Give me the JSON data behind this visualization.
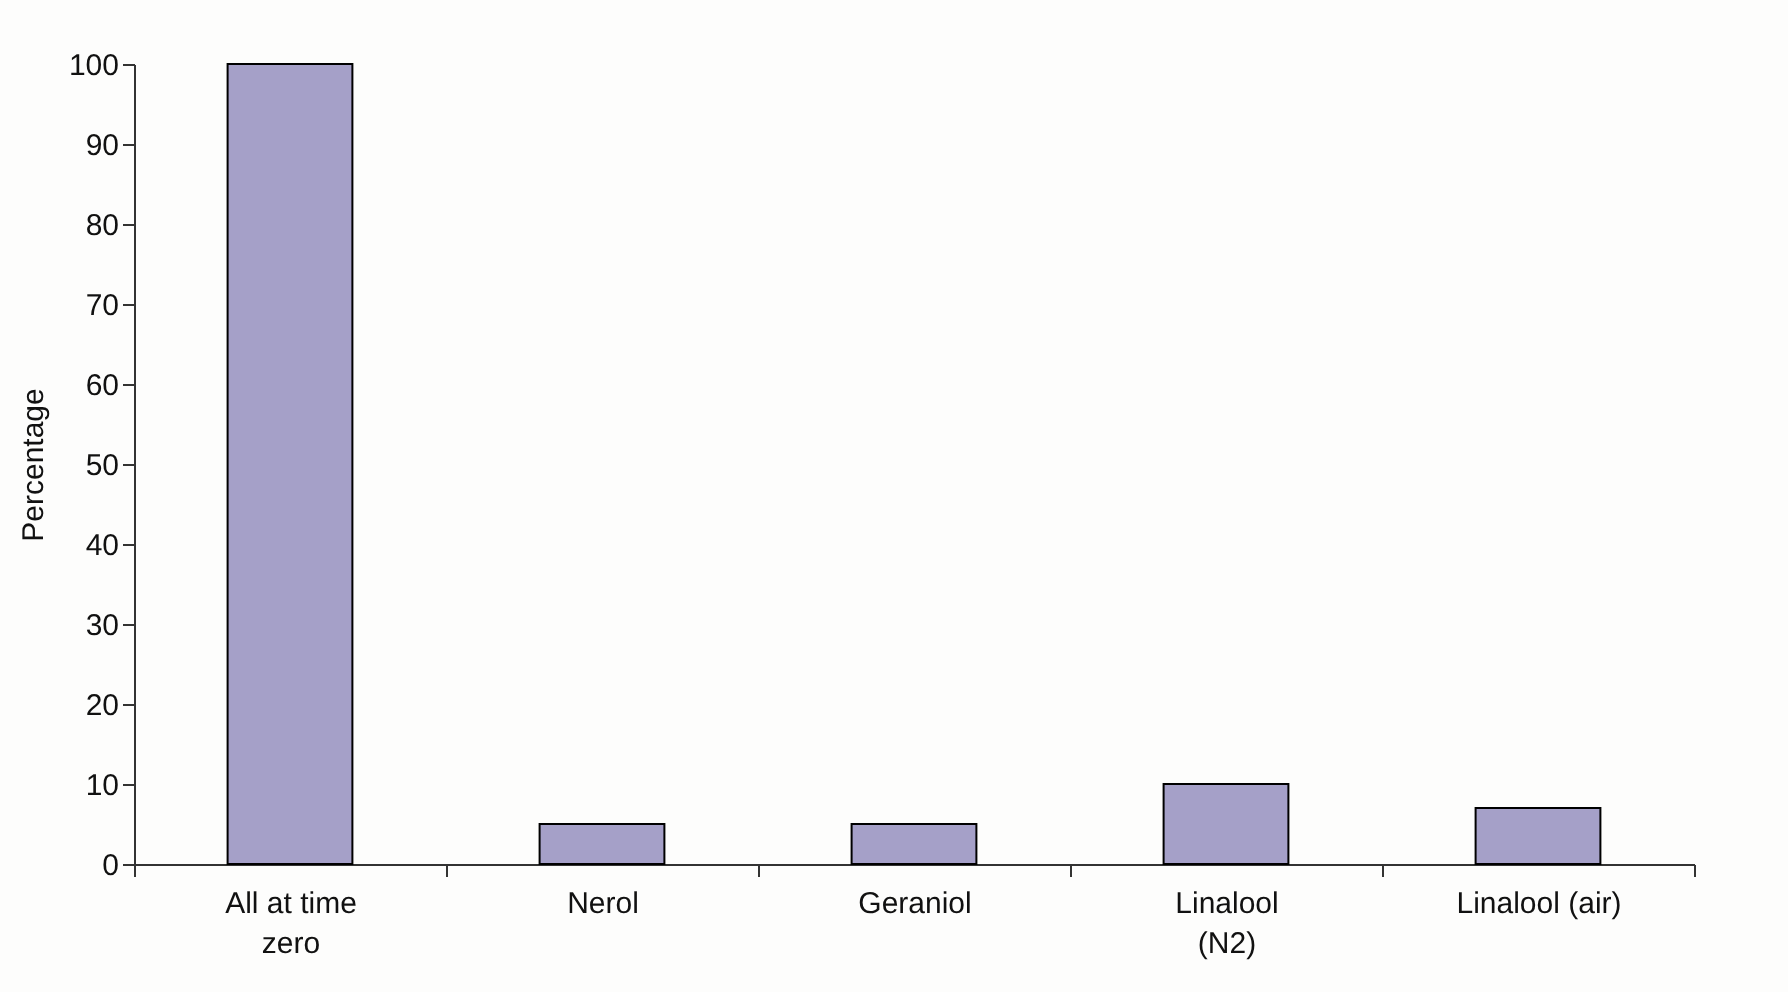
{
  "chart_data": {
    "type": "bar",
    "ylabel": "Percentage",
    "categories": [
      "All at time\nzero",
      "Nerol",
      "Geraniol",
      "Linalool\n(N2)",
      "Linalool (air)"
    ],
    "values": [
      100,
      5,
      5,
      10,
      7
    ],
    "color": "#a5a0c8",
    "ylim": [
      0,
      100
    ],
    "yticks": [
      0,
      10,
      20,
      30,
      40,
      50,
      60,
      70,
      80,
      90,
      100
    ],
    "grid": false,
    "legend": false
  }
}
